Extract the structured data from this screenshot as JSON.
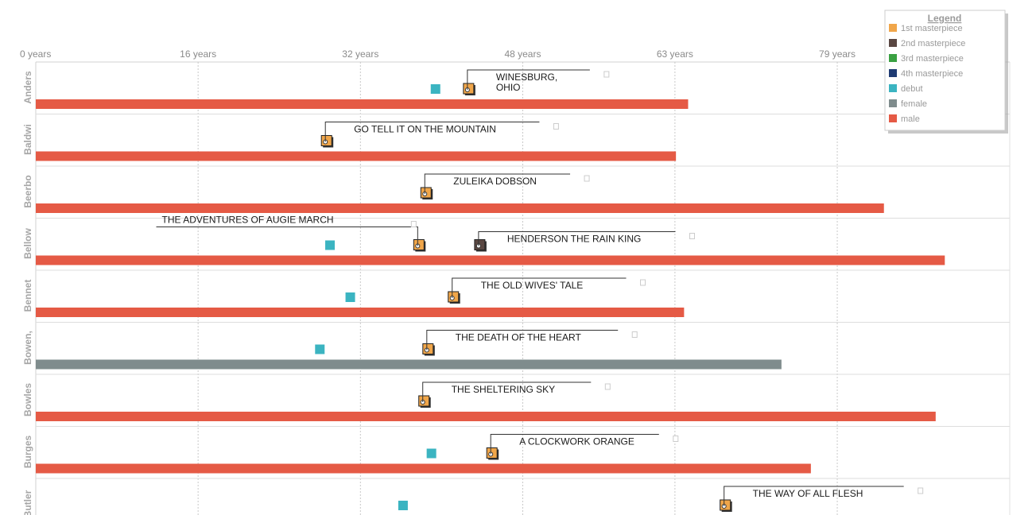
{
  "chart_data": {
    "type": "timeline",
    "x_unit": "years",
    "xlim": [
      0,
      95
    ],
    "x_ticks": [
      {
        "value": 0,
        "label": "0 years"
      },
      {
        "value": 16,
        "label": "16 years"
      },
      {
        "value": 32,
        "label": "32 years"
      },
      {
        "value": 48,
        "label": "48 years"
      },
      {
        "value": 63,
        "label": "63 years"
      },
      {
        "value": 79,
        "label": "79 years"
      }
    ],
    "grid": true,
    "legend": {
      "title": "Legend",
      "placement": "top-right",
      "entries": [
        {
          "key": "m1",
          "label": "1st masterpiece",
          "color": "#f0a64a"
        },
        {
          "key": "m2",
          "label": "2nd masterpiece",
          "color": "#5a4742"
        },
        {
          "key": "m3",
          "label": "3rd masterpiece",
          "color": "#3aa142"
        },
        {
          "key": "m4",
          "label": "4th masterpiece",
          "color": "#1f3b73"
        },
        {
          "key": "debut",
          "label": "debut",
          "color": "#3bb4c1"
        },
        {
          "key": "female",
          "label": "female",
          "color": "#7f8c8d"
        },
        {
          "key": "male",
          "label": "male",
          "color": "#e55a45"
        }
      ]
    },
    "authors": [
      {
        "name": "Anders",
        "gender": "male",
        "lifespan": 64.3,
        "debut": 39.4,
        "masterpieces": [
          {
            "rank": 1,
            "age": 42.7,
            "title": [
              "WINESBURG,",
              "OHIO"
            ]
          }
        ]
      },
      {
        "name": "Baldwi",
        "gender": "male",
        "lifespan": 63.1,
        "debut": null,
        "masterpieces": [
          {
            "rank": 1,
            "age": 28.7,
            "title": [
              "GO TELL IT ON THE MOUNTAIN"
            ]
          }
        ]
      },
      {
        "name": "Beerbo",
        "gender": "male",
        "lifespan": 83.6,
        "debut": null,
        "masterpieces": [
          {
            "rank": 1,
            "age": 38.5,
            "title": [
              "ZULEIKA DOBSON"
            ]
          }
        ]
      },
      {
        "name": "Bellow",
        "gender": "male",
        "lifespan": 89.6,
        "debut": 29.0,
        "masterpieces": [
          {
            "rank": 1,
            "age": 37.8,
            "title": [
              "THE ADVENTURES OF AUGIE MARCH"
            ]
          },
          {
            "rank": 2,
            "age": 43.8,
            "title": [
              "HENDERSON THE RAIN KING"
            ]
          }
        ]
      },
      {
        "name": "Bennet",
        "gender": "male",
        "lifespan": 63.9,
        "debut": 31.0,
        "masterpieces": [
          {
            "rank": 1,
            "age": 41.2,
            "title": [
              "THE OLD WIVES' TALE"
            ]
          }
        ]
      },
      {
        "name": "Bowen,",
        "gender": "female",
        "lifespan": 73.5,
        "debut": 28.0,
        "masterpieces": [
          {
            "rank": 1,
            "age": 38.7,
            "title": [
              "THE DEATH OF THE HEART"
            ]
          }
        ]
      },
      {
        "name": "Bowles",
        "gender": "male",
        "lifespan": 88.7,
        "debut": null,
        "masterpieces": [
          {
            "rank": 1,
            "age": 38.3,
            "title": [
              "THE SHELTERING SKY"
            ]
          }
        ]
      },
      {
        "name": "Burges",
        "gender": "male",
        "lifespan": 76.4,
        "debut": 39.0,
        "masterpieces": [
          {
            "rank": 1,
            "age": 45.0,
            "title": [
              "A CLOCKWORK ORANGE"
            ]
          }
        ]
      },
      {
        "name": "Butler",
        "gender": "male",
        "lifespan": null,
        "debut": 36.2,
        "masterpieces": [
          {
            "rank": 1,
            "age": 68.0,
            "title": [
              "THE WAY OF ALL FLESH"
            ]
          }
        ]
      }
    ]
  }
}
